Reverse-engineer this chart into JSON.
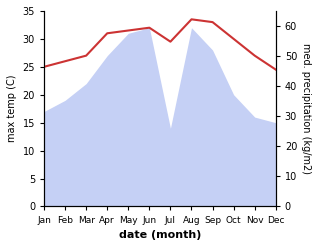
{
  "months": [
    "Jan",
    "Feb",
    "Mar",
    "Apr",
    "May",
    "Jun",
    "Jul",
    "Aug",
    "Sep",
    "Oct",
    "Nov",
    "Dec"
  ],
  "temp": [
    25,
    26,
    27,
    31,
    31.5,
    32,
    29.5,
    33.5,
    33,
    30,
    27,
    24.5
  ],
  "rainfall": [
    17,
    19,
    22,
    27,
    31,
    32,
    14,
    32,
    28,
    20,
    16,
    15
  ],
  "temp_color": "#cc3333",
  "rainfall_fill_color": "#c5d0f5",
  "background_color": "#ffffff",
  "xlabel": "date (month)",
  "ylabel_left": "max temp (C)",
  "ylabel_right": "med. precipitation (kg/m2)",
  "ylim_left": [
    0,
    35
  ],
  "ylim_right": [
    0,
    65
  ],
  "yticks_left": [
    0,
    5,
    10,
    15,
    20,
    25,
    30,
    35
  ],
  "yticks_right": [
    0,
    10,
    20,
    30,
    40,
    50,
    60
  ],
  "figsize": [
    3.18,
    2.47
  ],
  "dpi": 100
}
